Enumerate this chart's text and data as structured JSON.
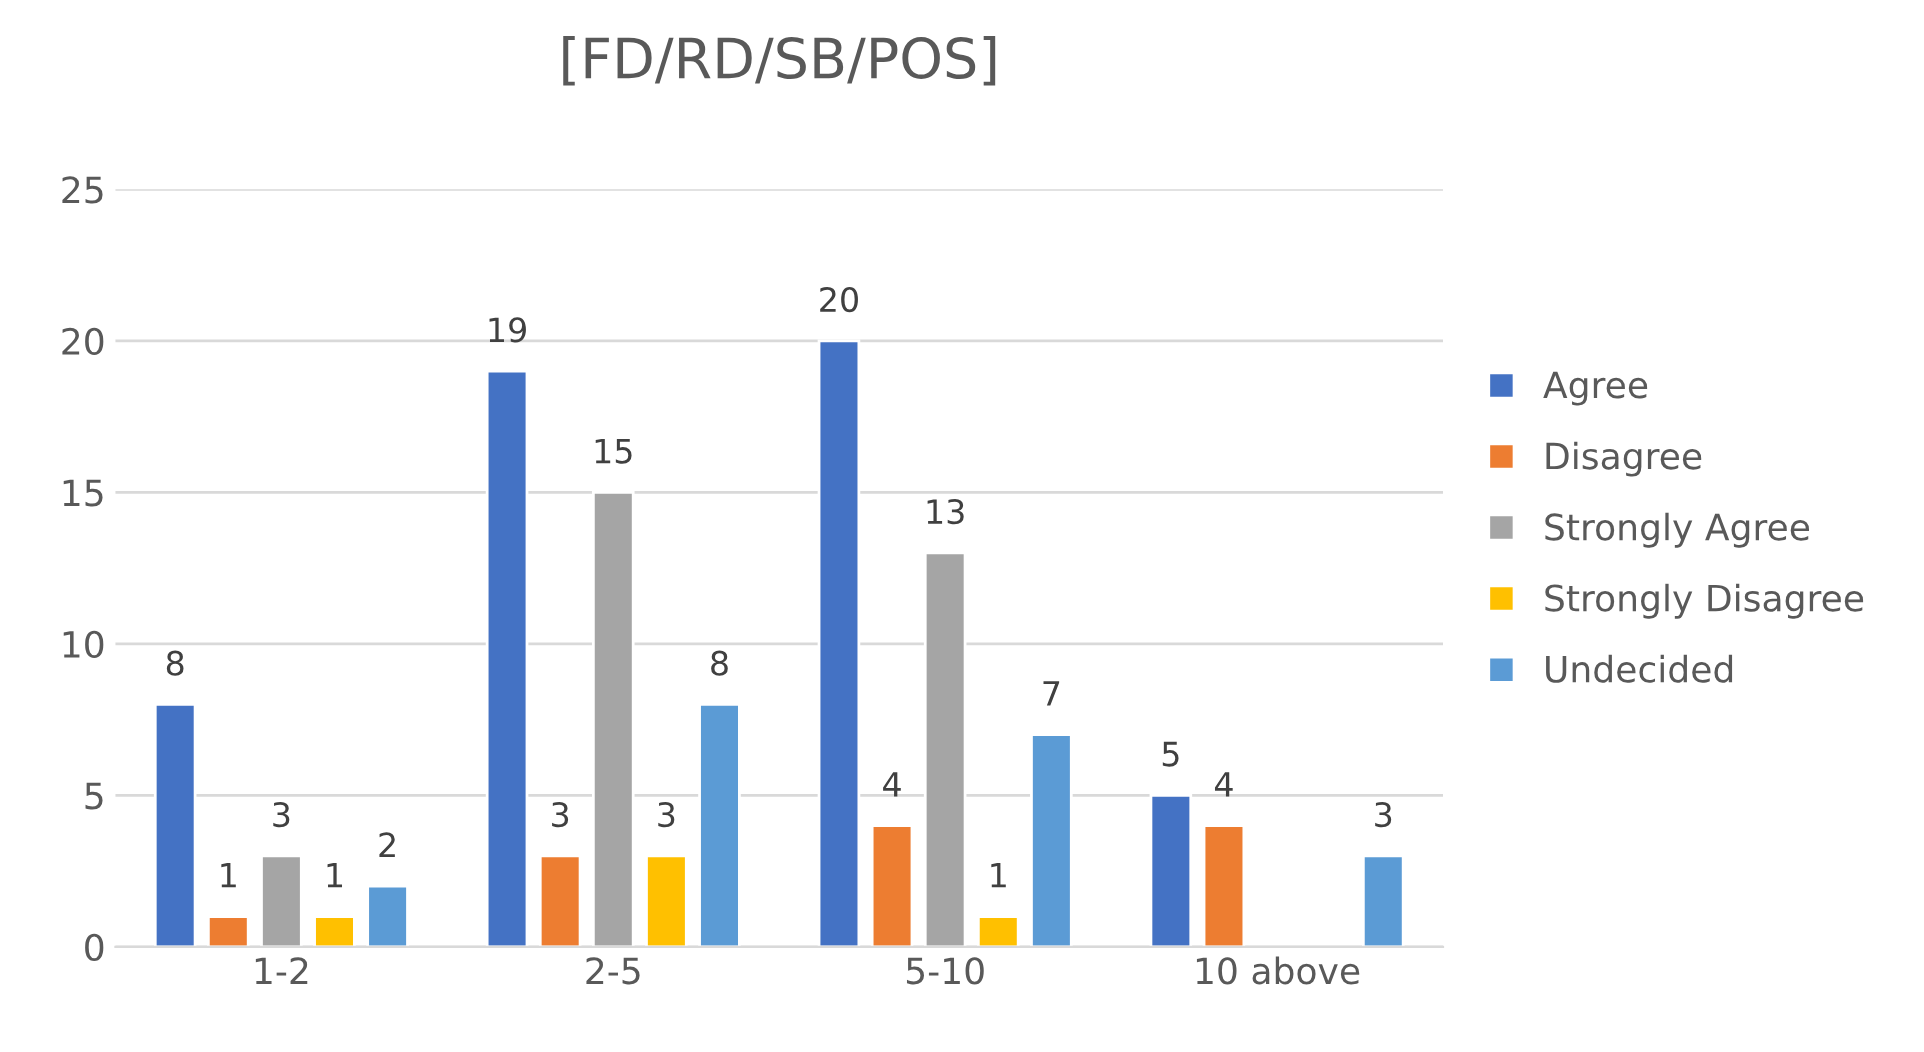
{
  "chart_data": {
    "type": "bar",
    "title": "[FD/RD/SB/POS]",
    "categories": [
      "1-2",
      "2-5",
      "5-10",
      "10 above"
    ],
    "series": [
      {
        "name": "Agree",
        "color": "#4472c4",
        "values": [
          8,
          19,
          20,
          5
        ]
      },
      {
        "name": "Disagree",
        "color": "#ed7d31",
        "values": [
          1,
          3,
          4,
          4
        ]
      },
      {
        "name": "Strongly Agree",
        "color": "#a5a5a5",
        "values": [
          3,
          15,
          13,
          null
        ]
      },
      {
        "name": "Strongly Disagree",
        "color": "#ffc000",
        "values": [
          1,
          3,
          1,
          null
        ]
      },
      {
        "name": "Undecided",
        "color": "#5b9bd5",
        "values": [
          2,
          8,
          7,
          3
        ]
      }
    ],
    "ylim": [
      0,
      25
    ],
    "yticks": [
      0,
      5,
      10,
      15,
      20,
      25
    ],
    "grid": "y",
    "legend": "right",
    "data_labels": true
  }
}
